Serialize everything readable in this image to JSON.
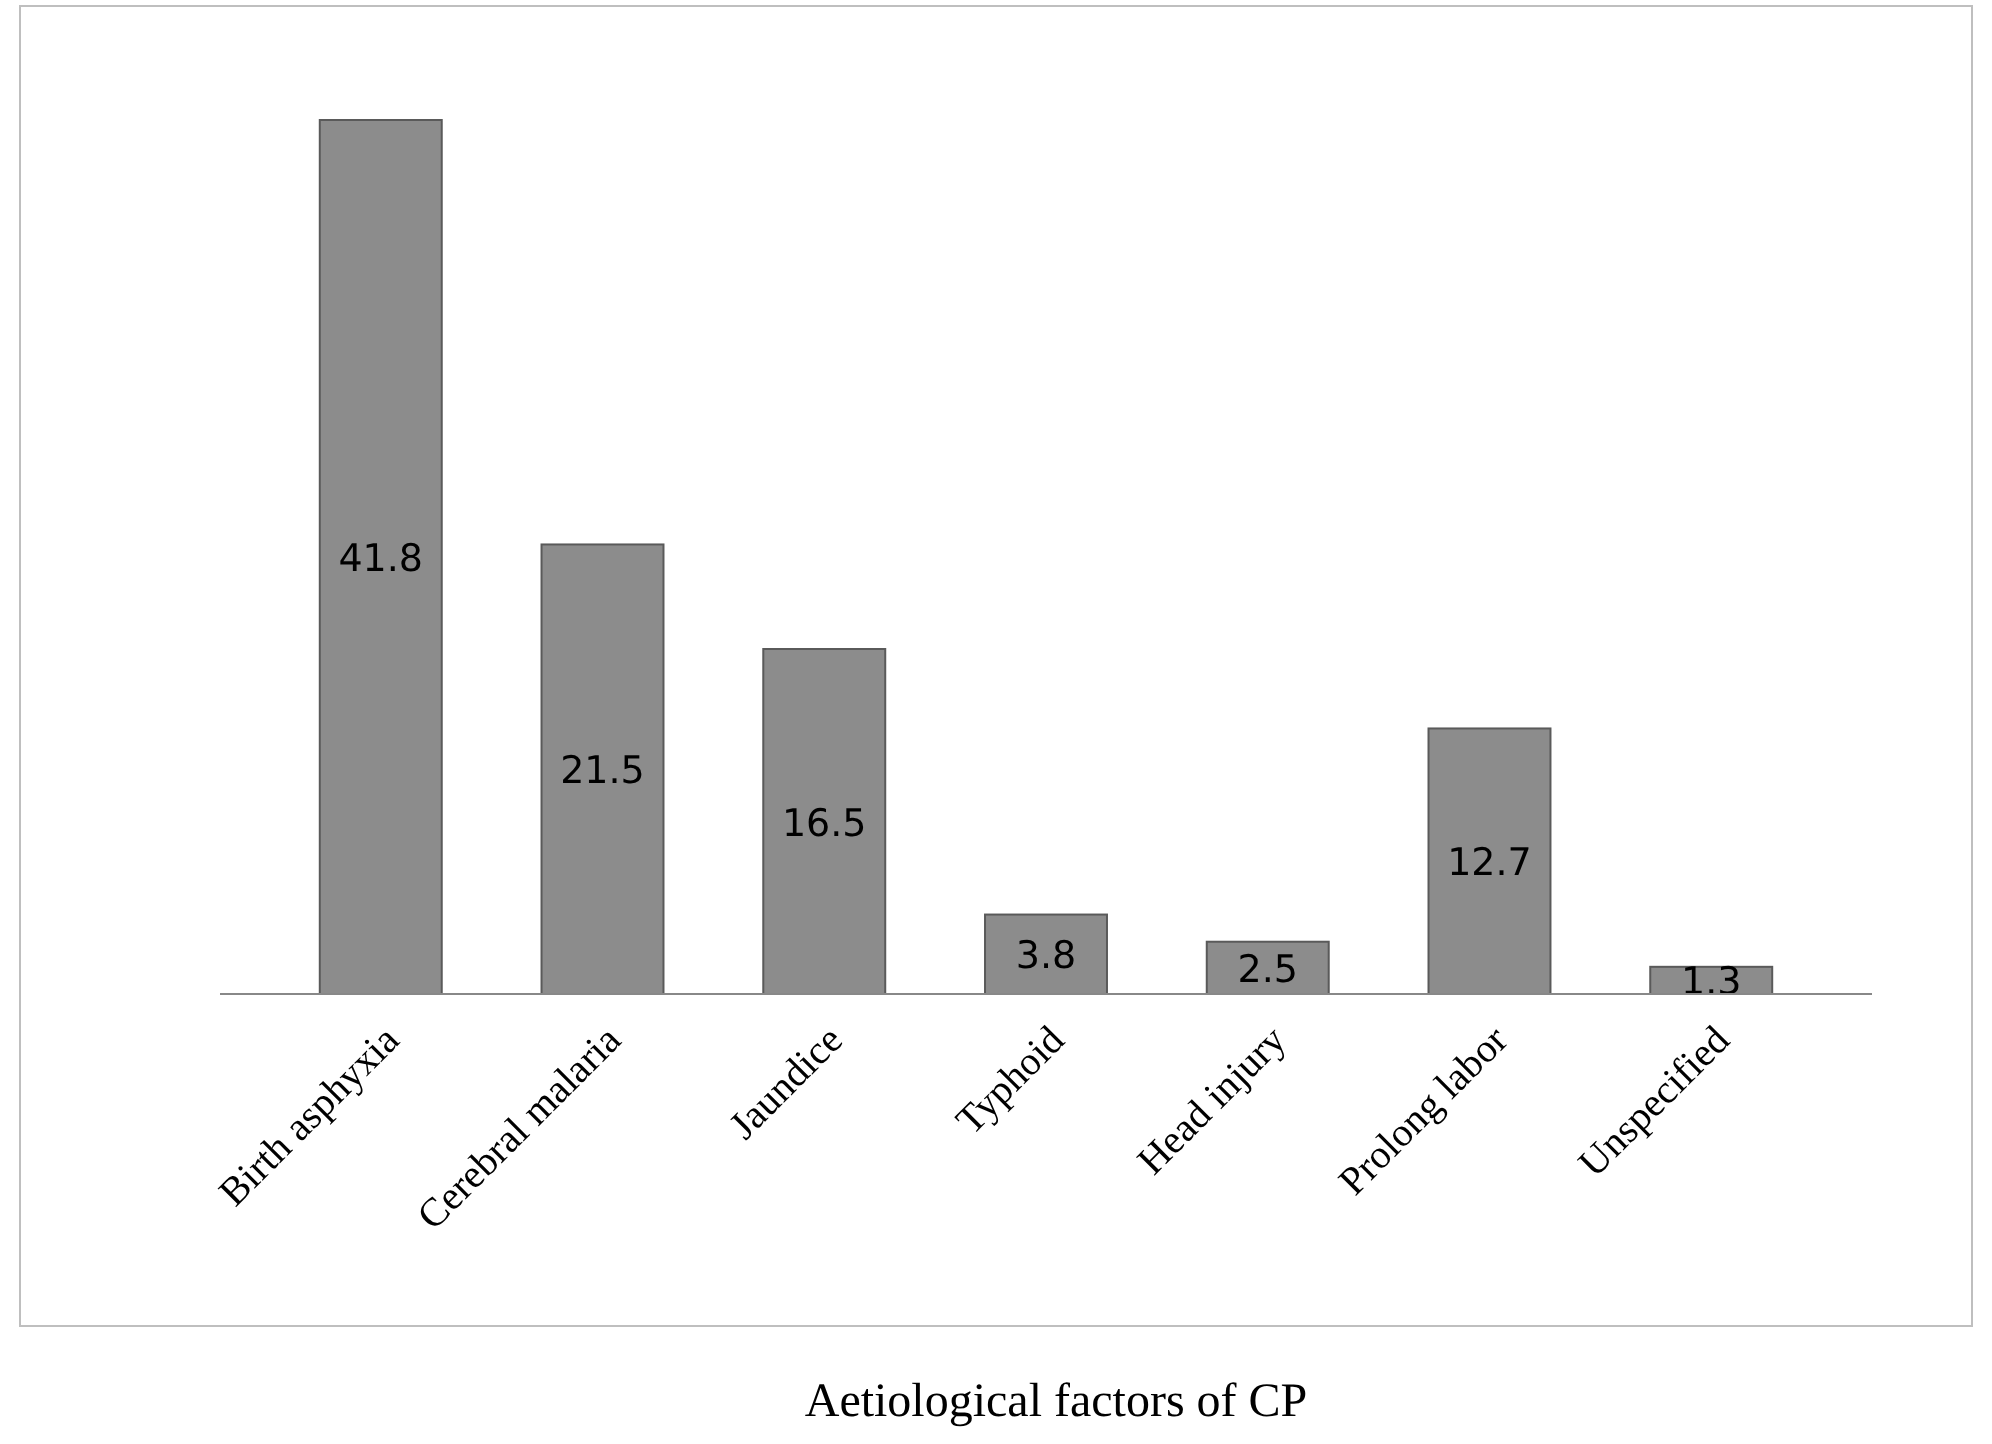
{
  "chart_data": {
    "type": "bar",
    "xlabel": "Aetiological factors of CP",
    "categories": [
      "Birth asphyxia",
      "Cerebral malaria",
      "Jaundice",
      "Typhoid",
      "Head injury",
      "Prolong labor",
      "Unspecified"
    ],
    "values": [
      41.8,
      21.5,
      16.5,
      3.8,
      2.5,
      12.7,
      1.3
    ],
    "color": "#8c8c8c",
    "data_labels": true
  }
}
